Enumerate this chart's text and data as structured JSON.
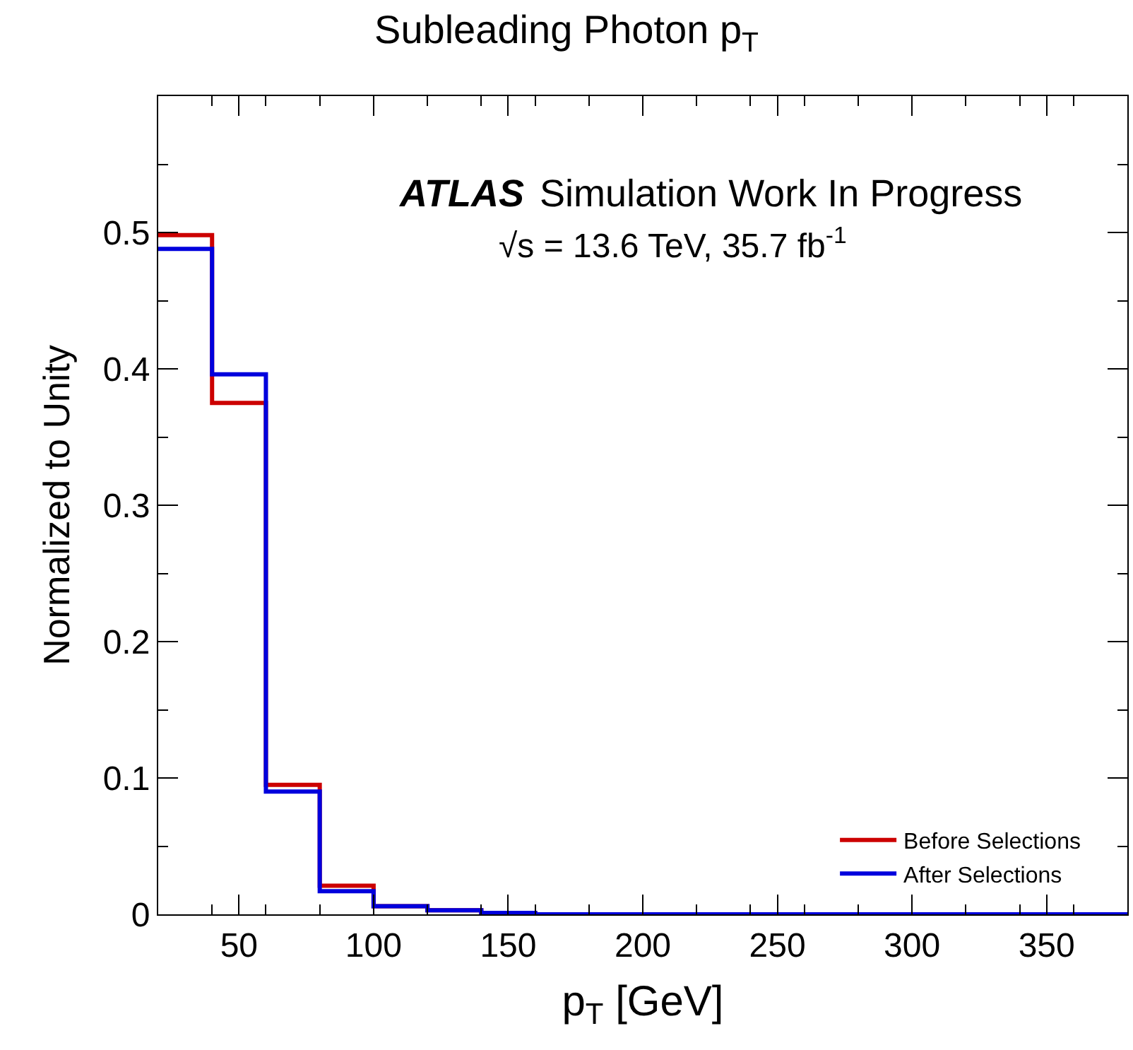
{
  "chart_data": {
    "type": "histogram",
    "title": "Subleading Photon p$_{T}$",
    "xlabel": "p$_{T}$ [GeV]",
    "ylabel": "Normalized to Unity",
    "annotations": [
      "ATLAS",
      "Simulation Work In Progress",
      "√s = 13.6 TeV, 35.7 fb$^{-1}$"
    ],
    "bins": [
      20,
      40,
      60,
      80,
      100,
      120,
      140,
      160,
      180,
      200,
      220,
      240,
      260,
      280,
      300,
      320,
      340,
      360,
      380
    ],
    "series": [
      {
        "name": "Before Selections",
        "color": "#cc0000",
        "values": [
          0.498,
          0.375,
          0.095,
          0.021,
          0.006,
          0.003,
          0.001,
          0,
          0,
          0,
          0,
          0,
          0,
          0,
          0,
          0,
          0,
          0
        ]
      },
      {
        "name": "After Selections",
        "color": "#0000dd",
        "values": [
          0.488,
          0.396,
          0.09,
          0.017,
          0.006,
          0.003,
          0.001,
          0,
          0,
          0,
          0,
          0,
          0,
          0,
          0,
          0,
          0,
          0
        ]
      }
    ],
    "xlim": [
      20,
      380
    ],
    "xticks": [
      50,
      100,
      150,
      200,
      250,
      300,
      350
    ],
    "ylim": [
      0,
      0.6
    ],
    "yticks": [
      0,
      0.1,
      0.2,
      0.3,
      0.4,
      0.5
    ],
    "legend": "bottom right",
    "line_style": "solid"
  }
}
